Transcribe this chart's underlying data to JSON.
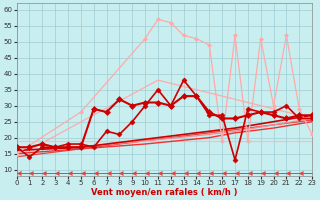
{
  "xlabel": "Vent moyen/en rafales ( km/h )",
  "xlim": [
    0,
    23
  ],
  "ylim": [
    8,
    62
  ],
  "yticks": [
    10,
    15,
    20,
    25,
    30,
    35,
    40,
    45,
    50,
    55,
    60
  ],
  "xticks": [
    0,
    1,
    2,
    3,
    4,
    5,
    6,
    7,
    8,
    9,
    10,
    11,
    12,
    13,
    14,
    15,
    16,
    17,
    18,
    19,
    20,
    21,
    22,
    23
  ],
  "bg_color": "#c8eef0",
  "grid_color": "#9dccd4",
  "series": [
    {
      "x": [
        0,
        1,
        2,
        3,
        4,
        5,
        6,
        7,
        8,
        9,
        10,
        11,
        12,
        13,
        14,
        15,
        16,
        17,
        18,
        19,
        20,
        21,
        22,
        23
      ],
      "y": [
        14,
        14.5,
        15,
        15.5,
        16,
        16.5,
        17,
        17.5,
        18,
        18.5,
        19,
        19.5,
        20,
        20.5,
        21,
        21.5,
        22,
        22.5,
        23,
        23.5,
        24,
        24.5,
        25,
        25.5
      ],
      "color": "#dd4444",
      "lw": 0.9,
      "marker": null,
      "ls": "-",
      "zorder": 2
    },
    {
      "x": [
        0,
        11,
        23
      ],
      "y": [
        14,
        38,
        26
      ],
      "color": "#ffaaaa",
      "lw": 0.9,
      "marker": null,
      "ls": "-",
      "zorder": 2
    },
    {
      "x": [
        0,
        5,
        10,
        11,
        12,
        13,
        14,
        15,
        16,
        17,
        18,
        19,
        20,
        21,
        22,
        23
      ],
      "y": [
        15,
        28,
        51,
        57,
        56,
        52,
        51,
        49,
        19,
        52,
        19,
        51,
        30,
        52,
        29,
        21
      ],
      "color": "#ffaaaa",
      "lw": 0.9,
      "marker": "D",
      "ms": 2,
      "ls": "-",
      "zorder": 3
    },
    {
      "x": [
        0,
        1,
        2,
        3,
        4,
        5,
        6,
        7,
        8,
        9,
        10,
        11,
        12,
        13,
        14,
        15,
        16,
        17,
        18,
        19,
        20,
        21,
        22,
        23
      ],
      "y": [
        17,
        14,
        17,
        17,
        18,
        18,
        17,
        22,
        21,
        25,
        30,
        35,
        30,
        38,
        33,
        27,
        27,
        13,
        29,
        28,
        28,
        30,
        26,
        26
      ],
      "color": "#cc0000",
      "lw": 1.2,
      "marker": "D",
      "ms": 2.5,
      "ls": "-",
      "zorder": 4
    },
    {
      "x": [
        0,
        5,
        10,
        16,
        17,
        23
      ],
      "y": [
        19,
        19,
        19,
        19,
        19,
        19
      ],
      "color": "#ffbbbb",
      "lw": 0.9,
      "marker": null,
      "ls": "-",
      "zorder": 2
    },
    {
      "x": [
        0,
        5,
        10,
        15,
        17,
        20,
        23
      ],
      "y": [
        16,
        17,
        19,
        21,
        22,
        24,
        26
      ],
      "color": "#ff8888",
      "lw": 0.9,
      "marker": null,
      "ls": "-",
      "zorder": 2
    },
    {
      "x": [
        0,
        5,
        10,
        15,
        17,
        20,
        23
      ],
      "y": [
        15,
        16.5,
        18,
        20,
        21.5,
        23,
        25
      ],
      "color": "#ee3333",
      "lw": 1.0,
      "marker": null,
      "ls": "-",
      "zorder": 2
    },
    {
      "x": [
        0,
        5,
        10,
        15,
        17,
        20,
        23
      ],
      "y": [
        16,
        17,
        19.5,
        22,
        23,
        25,
        27
      ],
      "color": "#cc0000",
      "lw": 1.2,
      "marker": null,
      "ls": "-",
      "zorder": 2
    },
    {
      "x": [
        0,
        1,
        2,
        3,
        4,
        5,
        6,
        7,
        8,
        9,
        10,
        11,
        12,
        13,
        14,
        15,
        16,
        17,
        18,
        19,
        20,
        21,
        22,
        23
      ],
      "y": [
        17,
        17,
        18,
        17,
        17,
        17,
        29,
        28,
        32,
        30,
        31,
        31,
        30,
        33,
        33,
        28,
        26,
        26,
        27,
        28,
        27,
        26,
        27,
        27
      ],
      "color": "#cc0000",
      "lw": 1.5,
      "marker": "D",
      "ms": 3,
      "ls": "-",
      "zorder": 4
    },
    {
      "x": [
        0,
        1,
        2,
        3,
        4,
        5,
        6,
        7,
        8,
        9,
        10,
        11,
        12,
        13,
        14,
        15,
        16,
        17,
        18,
        19,
        20,
        21,
        22,
        23
      ],
      "y": [
        9,
        9,
        9,
        9,
        9,
        9,
        9,
        9,
        9,
        9,
        9,
        9,
        9,
        9,
        9,
        9,
        9,
        9,
        9,
        9,
        9,
        9,
        9,
        9
      ],
      "color": "#dd4444",
      "lw": 0.7,
      "marker": 4,
      "ms": 3.5,
      "ls": "-",
      "zorder": 3
    }
  ]
}
